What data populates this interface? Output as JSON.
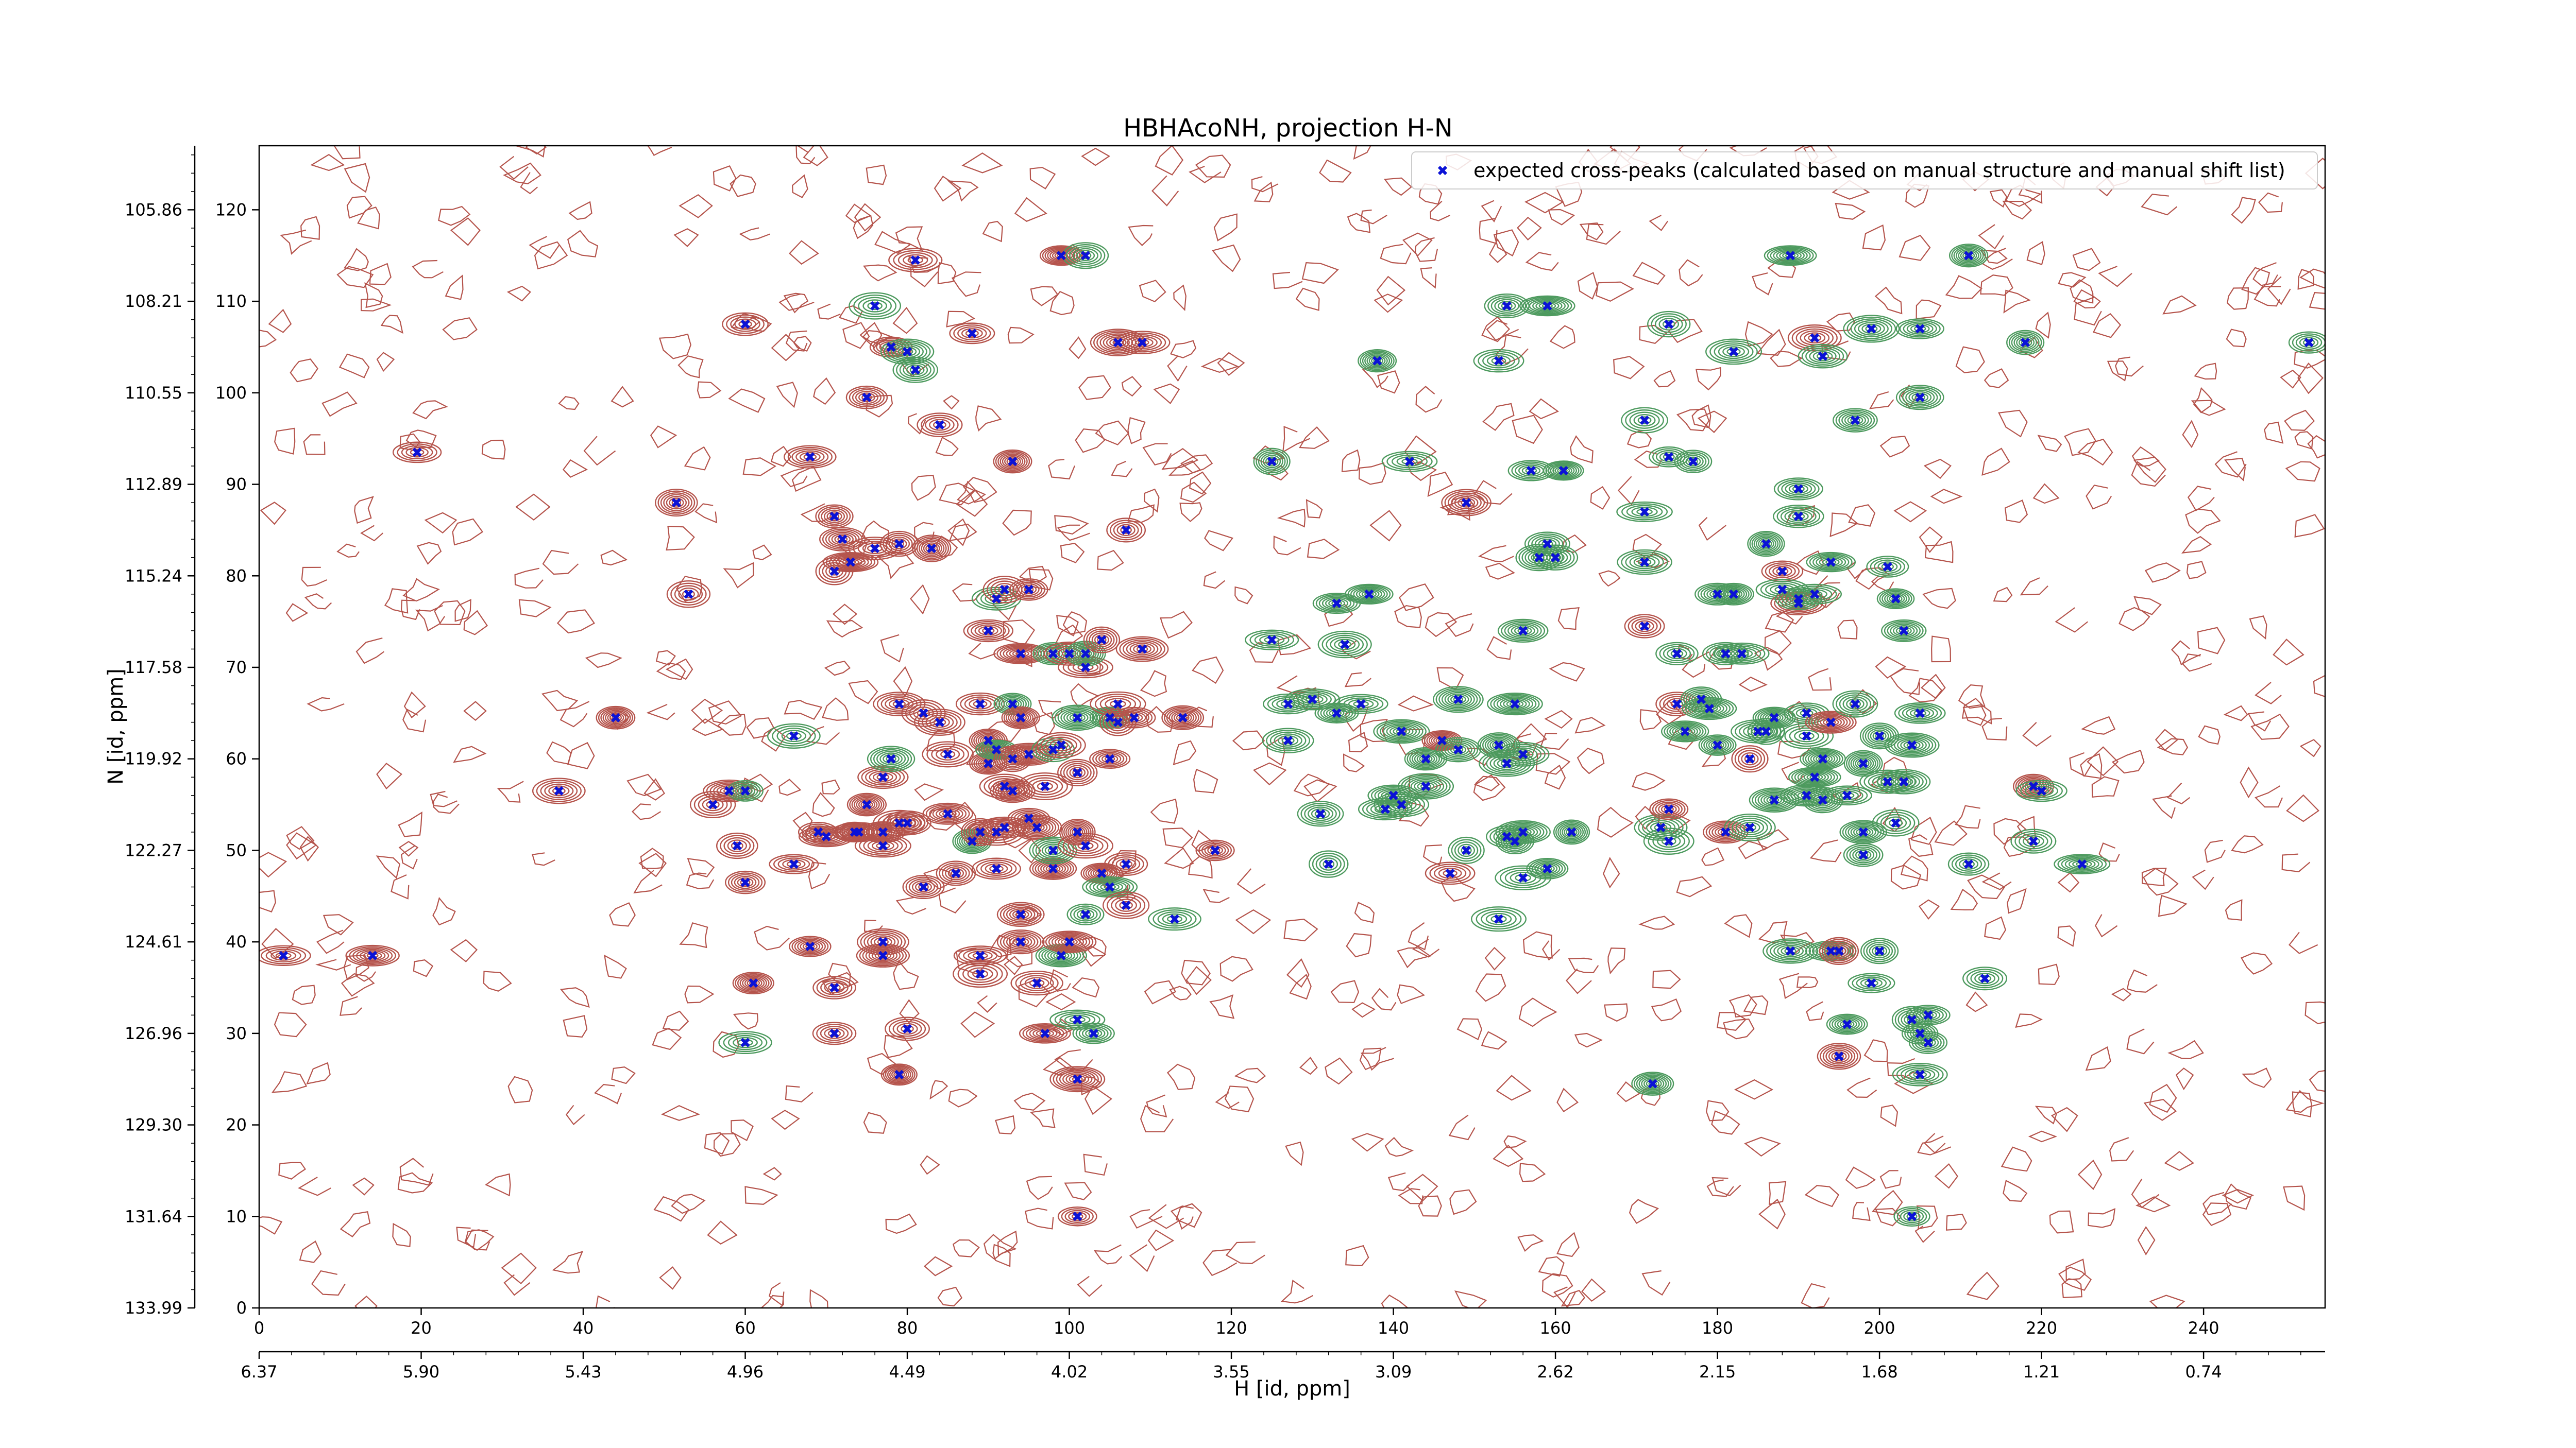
{
  "chart_data": {
    "type": "scatter",
    "title": "HBHAcoNH, projection H-N",
    "xlabel": "H [id, ppm]",
    "ylabel": "N [id, ppm]",
    "xlim": [
      0,
      255
    ],
    "ylim": [
      0,
      127
    ],
    "grid": false,
    "legend_position": "top-right",
    "x_ticks": [
      0,
      20,
      40,
      60,
      80,
      100,
      120,
      140,
      160,
      180,
      200,
      220,
      240
    ],
    "y_ticks": [
      0,
      10,
      20,
      30,
      40,
      50,
      60,
      70,
      80,
      90,
      100,
      110,
      120
    ],
    "x2_ticks": [
      {
        "at": 0,
        "label": "6.37"
      },
      {
        "at": 20,
        "label": "5.90"
      },
      {
        "at": 40,
        "label": "5.43"
      },
      {
        "at": 60,
        "label": "4.96"
      },
      {
        "at": 80,
        "label": "4.49"
      },
      {
        "at": 100,
        "label": "4.02"
      },
      {
        "at": 120,
        "label": "3.55"
      },
      {
        "at": 140,
        "label": "3.09"
      },
      {
        "at": 160,
        "label": "2.62"
      },
      {
        "at": 180,
        "label": "2.15"
      },
      {
        "at": 200,
        "label": "1.68"
      },
      {
        "at": 220,
        "label": "1.21"
      },
      {
        "at": 240,
        "label": "0.74"
      }
    ],
    "y2_ticks": [
      {
        "at": 0,
        "label": "133.99"
      },
      {
        "at": 10,
        "label": "131.64"
      },
      {
        "at": 20,
        "label": "129.30"
      },
      {
        "at": 30,
        "label": "126.96"
      },
      {
        "at": 40,
        "label": "124.61"
      },
      {
        "at": 50,
        "label": "122.27"
      },
      {
        "at": 60,
        "label": "119.92"
      },
      {
        "at": 70,
        "label": "117.58"
      },
      {
        "at": 80,
        "label": "115.24"
      },
      {
        "at": 90,
        "label": "112.89"
      },
      {
        "at": 100,
        "label": "110.55"
      },
      {
        "at": 110,
        "label": "108.21"
      },
      {
        "at": 120,
        "label": "105.86"
      }
    ],
    "colors": {
      "positive_contour": "#b5544c",
      "negative_contour": "#4d9a5e",
      "marker": "#0b12d6"
    },
    "series": [
      {
        "name": "expected cross-peaks (calculated based on manual structure and manual shift list)",
        "marker": "x",
        "points": [
          [
            3,
            38.5
          ],
          [
            14,
            38.5
          ],
          [
            19.5,
            93.5
          ],
          [
            37,
            56.5
          ],
          [
            44,
            64.5
          ],
          [
            51.5,
            88
          ],
          [
            53,
            78
          ],
          [
            56,
            55
          ],
          [
            58,
            56.5
          ],
          [
            60,
            56.5
          ],
          [
            59,
            50.5
          ],
          [
            60,
            46.5
          ],
          [
            60,
            107.5
          ],
          [
            60,
            29
          ],
          [
            61,
            35.5
          ],
          [
            66,
            48.5
          ],
          [
            66,
            62.5
          ],
          [
            68,
            93
          ],
          [
            68,
            39.5
          ],
          [
            69,
            52
          ],
          [
            70,
            51.5
          ],
          [
            71,
            86.5
          ],
          [
            71,
            80.5
          ],
          [
            71,
            30
          ],
          [
            71,
            35
          ],
          [
            72,
            84
          ],
          [
            73,
            81.5
          ],
          [
            73.5,
            52
          ],
          [
            74,
            52
          ],
          [
            75,
            55
          ],
          [
            75,
            99.5
          ],
          [
            76,
            83
          ],
          [
            76,
            109.5
          ],
          [
            77,
            58
          ],
          [
            77,
            50.5
          ],
          [
            77,
            52
          ],
          [
            77,
            38.5
          ],
          [
            77,
            40
          ],
          [
            78,
            60
          ],
          [
            78,
            105
          ],
          [
            79,
            66
          ],
          [
            80,
            30.5
          ],
          [
            79,
            83.5
          ],
          [
            79,
            53
          ],
          [
            79,
            25.5
          ],
          [
            80,
            104.5
          ],
          [
            80,
            53
          ],
          [
            81,
            102.5
          ],
          [
            81,
            114.5
          ],
          [
            83,
            83
          ],
          [
            82,
            65
          ],
          [
            82,
            46
          ],
          [
            84,
            64
          ],
          [
            84,
            96.5
          ],
          [
            85,
            54
          ],
          [
            85,
            60.5
          ],
          [
            86,
            47.5
          ],
          [
            88,
            106.5
          ],
          [
            89,
            66
          ],
          [
            88,
            51
          ],
          [
            89,
            52
          ],
          [
            89,
            38.5
          ],
          [
            89,
            36.5
          ],
          [
            90,
            74
          ],
          [
            90,
            62
          ],
          [
            90,
            59.5
          ],
          [
            91,
            77.5
          ],
          [
            91,
            61
          ],
          [
            91,
            48
          ],
          [
            91,
            52
          ],
          [
            92,
            52.5
          ],
          [
            92,
            57
          ],
          [
            92,
            78.5
          ],
          [
            93,
            92.5
          ],
          [
            93,
            60
          ],
          [
            93,
            56.5
          ],
          [
            93,
            66
          ],
          [
            94,
            64.5
          ],
          [
            94,
            43
          ],
          [
            94,
            40
          ],
          [
            94,
            71.5
          ],
          [
            95,
            78.5
          ],
          [
            95,
            60.5
          ],
          [
            95,
            53.5
          ],
          [
            96,
            52.5
          ],
          [
            96,
            35.5
          ],
          [
            97,
            30
          ],
          [
            97,
            57
          ],
          [
            98,
            71.5
          ],
          [
            98,
            61
          ],
          [
            98,
            48
          ],
          [
            98,
            50
          ],
          [
            99,
            38.5
          ],
          [
            99,
            115
          ],
          [
            99,
            61.5
          ],
          [
            100,
            40
          ],
          [
            100,
            71.5
          ],
          [
            101,
            58.5
          ],
          [
            101,
            64.5
          ],
          [
            101,
            52
          ],
          [
            101,
            31.5
          ],
          [
            101,
            25
          ],
          [
            101,
            10
          ],
          [
            102,
            43
          ],
          [
            102,
            50.5
          ],
          [
            102,
            70
          ],
          [
            102,
            71.5
          ],
          [
            102,
            115
          ],
          [
            103,
            30
          ],
          [
            104,
            47.5
          ],
          [
            104,
            73
          ],
          [
            105,
            64.5
          ],
          [
            105,
            60
          ],
          [
            105,
            46
          ],
          [
            106,
            66
          ],
          [
            106,
            105.5
          ],
          [
            106,
            64
          ],
          [
            107,
            44
          ],
          [
            107,
            48.5
          ],
          [
            107,
            85
          ],
          [
            108,
            64.5
          ],
          [
            109,
            105.5
          ],
          [
            109,
            72
          ],
          [
            113,
            42.5
          ],
          [
            114,
            64.5
          ],
          [
            118,
            50
          ],
          [
            125,
            92.5
          ],
          [
            125,
            73
          ],
          [
            127,
            66
          ],
          [
            127,
            62
          ],
          [
            130,
            66.5
          ],
          [
            131,
            54
          ],
          [
            132,
            48.5
          ],
          [
            133,
            77
          ],
          [
            133,
            65
          ],
          [
            134,
            72.5
          ],
          [
            136,
            66
          ],
          [
            137,
            78
          ],
          [
            138,
            103.5
          ],
          [
            139,
            54.5
          ],
          [
            140,
            56
          ],
          [
            141,
            55
          ],
          [
            141,
            63
          ],
          [
            142,
            92.5
          ],
          [
            144,
            60
          ],
          [
            144,
            57
          ],
          [
            146,
            62
          ],
          [
            147,
            47.5
          ],
          [
            148,
            66.5
          ],
          [
            148,
            61
          ],
          [
            149,
            88
          ],
          [
            149,
            50
          ],
          [
            153,
            103.5
          ],
          [
            153,
            42.5
          ],
          [
            153,
            61.5
          ],
          [
            154,
            109.5
          ],
          [
            154,
            59.5
          ],
          [
            154,
            51.5
          ],
          [
            155,
            51
          ],
          [
            156,
            47
          ],
          [
            156,
            74
          ],
          [
            156,
            60.5
          ],
          [
            155,
            66
          ],
          [
            156,
            52
          ],
          [
            157,
            91.5
          ],
          [
            158,
            82
          ],
          [
            159,
            83.5
          ],
          [
            159,
            109.5
          ],
          [
            159,
            48
          ],
          [
            160,
            82
          ],
          [
            161,
            91.5
          ],
          [
            162,
            52
          ],
          [
            171,
            74.5
          ],
          [
            171,
            81.5
          ],
          [
            171,
            87
          ],
          [
            171,
            97
          ],
          [
            172,
            24.5
          ],
          [
            173,
            52.5
          ],
          [
            174,
            54.5
          ],
          [
            174,
            51
          ],
          [
            174,
            93
          ],
          [
            175,
            71.5
          ],
          [
            174,
            107.5
          ],
          [
            175,
            66
          ],
          [
            176,
            63
          ],
          [
            177,
            92.5
          ],
          [
            178,
            66.5
          ],
          [
            179,
            65.5
          ],
          [
            180,
            61.5
          ],
          [
            180,
            78
          ],
          [
            181,
            71.5
          ],
          [
            181,
            52
          ],
          [
            182,
            104.5
          ],
          [
            182,
            78
          ],
          [
            183,
            71.5
          ],
          [
            184,
            52.5
          ],
          [
            184,
            60
          ],
          [
            185,
            63
          ],
          [
            186,
            63
          ],
          [
            186,
            83.5
          ],
          [
            187,
            55.5
          ],
          [
            187,
            64.5
          ],
          [
            188,
            80.5
          ],
          [
            188,
            78.5
          ],
          [
            189,
            115
          ],
          [
            189,
            39
          ],
          [
            190,
            77
          ],
          [
            190,
            89.5
          ],
          [
            190,
            86.5
          ],
          [
            190,
            77.5
          ],
          [
            191,
            56
          ],
          [
            192,
            106
          ],
          [
            191,
            65
          ],
          [
            191,
            62.5
          ],
          [
            192,
            78
          ],
          [
            193,
            55.5
          ],
          [
            192,
            58
          ],
          [
            193,
            104
          ],
          [
            193,
            60
          ],
          [
            194,
            64
          ],
          [
            194,
            39
          ],
          [
            194,
            81.5
          ],
          [
            195,
            39
          ],
          [
            195,
            27.5
          ],
          [
            196,
            56
          ],
          [
            196,
            31
          ],
          [
            197,
            97
          ],
          [
            197,
            66
          ],
          [
            198,
            59.5
          ],
          [
            198,
            52
          ],
          [
            198,
            49.5
          ],
          [
            199,
            107
          ],
          [
            199,
            35.5
          ],
          [
            200,
            39
          ],
          [
            200,
            62.5
          ],
          [
            201,
            57.5
          ],
          [
            202,
            53
          ],
          [
            201,
            81
          ],
          [
            202,
            77.5
          ],
          [
            203,
            74
          ],
          [
            203,
            57.5
          ],
          [
            204,
            61.5
          ],
          [
            204,
            31.5
          ],
          [
            205,
            65
          ],
          [
            205,
            30
          ],
          [
            205,
            99.5
          ],
          [
            205,
            107
          ],
          [
            205,
            25.5
          ],
          [
            204,
            10
          ],
          [
            206,
            32
          ],
          [
            206,
            29
          ],
          [
            211,
            48.5
          ],
          [
            211,
            115
          ],
          [
            213,
            36
          ],
          [
            218,
            105.5
          ],
          [
            219,
            51
          ],
          [
            219,
            57
          ],
          [
            220,
            56.5
          ],
          [
            225,
            48.5
          ],
          [
            253,
            105.5
          ]
        ]
      }
    ]
  }
}
